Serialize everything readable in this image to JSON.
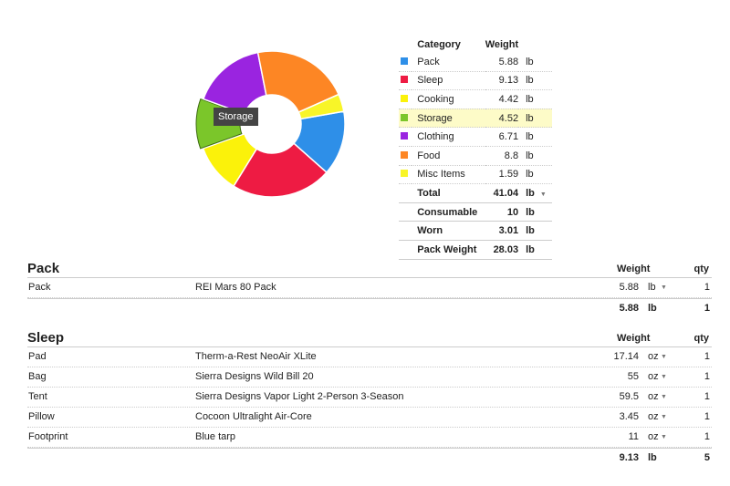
{
  "chart_data": {
    "type": "pie",
    "style": "donut",
    "categories": [
      "Pack",
      "Sleep",
      "Cooking",
      "Storage",
      "Clothing",
      "Food",
      "Misc Items"
    ],
    "values": [
      5.88,
      9.13,
      4.42,
      4.52,
      6.71,
      8.8,
      1.59
    ],
    "colors": [
      "#2e8fe8",
      "#ee1b43",
      "#fbf20a",
      "#7bc62a",
      "#9a24e0",
      "#fd8624",
      "#f8f528"
    ],
    "highlighted": "Storage",
    "tooltip": "Storage"
  },
  "category_table": {
    "headers": {
      "category": "Category",
      "weight": "Weight"
    },
    "rows": [
      {
        "name": "Pack",
        "weight": "5.88",
        "unit": "lb",
        "color": "#2e8fe8"
      },
      {
        "name": "Sleep",
        "weight": "9.13",
        "unit": "lb",
        "color": "#ee1b43"
      },
      {
        "name": "Cooking",
        "weight": "4.42",
        "unit": "lb",
        "color": "#fbf20a"
      },
      {
        "name": "Storage",
        "weight": "4.52",
        "unit": "lb",
        "color": "#7bc62a",
        "highlighted": true
      },
      {
        "name": "Clothing",
        "weight": "6.71",
        "unit": "lb",
        "color": "#9a24e0"
      },
      {
        "name": "Food",
        "weight": "8.8",
        "unit": "lb",
        "color": "#fd8624"
      },
      {
        "name": "Misc Items",
        "weight": "1.59",
        "unit": "lb",
        "color": "#f8f528"
      }
    ],
    "summary": [
      {
        "label": "Total",
        "weight": "41.04",
        "unit": "lb",
        "has_dropdown": true
      },
      {
        "label": "Consumable",
        "weight": "10",
        "unit": "lb"
      },
      {
        "label": "Worn",
        "weight": "3.01",
        "unit": "lb"
      },
      {
        "label": "Pack Weight",
        "weight": "28.03",
        "unit": "lb"
      }
    ]
  },
  "sections": [
    {
      "title": "Pack",
      "weight_header": "Weight",
      "qty_header": "qty",
      "items": [
        {
          "name": "Pack",
          "description": "REI Mars 80 Pack",
          "weight": "5.88",
          "unit": "lb",
          "qty": "1"
        }
      ],
      "total": {
        "weight": "5.88",
        "unit": "lb",
        "qty": "1"
      }
    },
    {
      "title": "Sleep",
      "weight_header": "Weight",
      "qty_header": "qty",
      "items": [
        {
          "name": "Pad",
          "description": "Therm-a-Rest NeoAir XLite",
          "weight": "17.14",
          "unit": "oz",
          "qty": "1"
        },
        {
          "name": "Bag",
          "description": "Sierra Designs Wild Bill 20",
          "weight": "55",
          "unit": "oz",
          "qty": "1"
        },
        {
          "name": "Tent",
          "description": "Sierra Designs Vapor Light 2-Person 3-Season",
          "weight": "59.5",
          "unit": "oz",
          "qty": "1"
        },
        {
          "name": "Pillow",
          "description": "Cocoon Ultralight Air-Core",
          "weight": "3.45",
          "unit": "oz",
          "qty": "1"
        },
        {
          "name": "Footprint",
          "description": "Blue tarp",
          "weight": "11",
          "unit": "oz",
          "qty": "1"
        }
      ],
      "total": {
        "weight": "9.13",
        "unit": "lb",
        "qty": "5"
      }
    }
  ]
}
